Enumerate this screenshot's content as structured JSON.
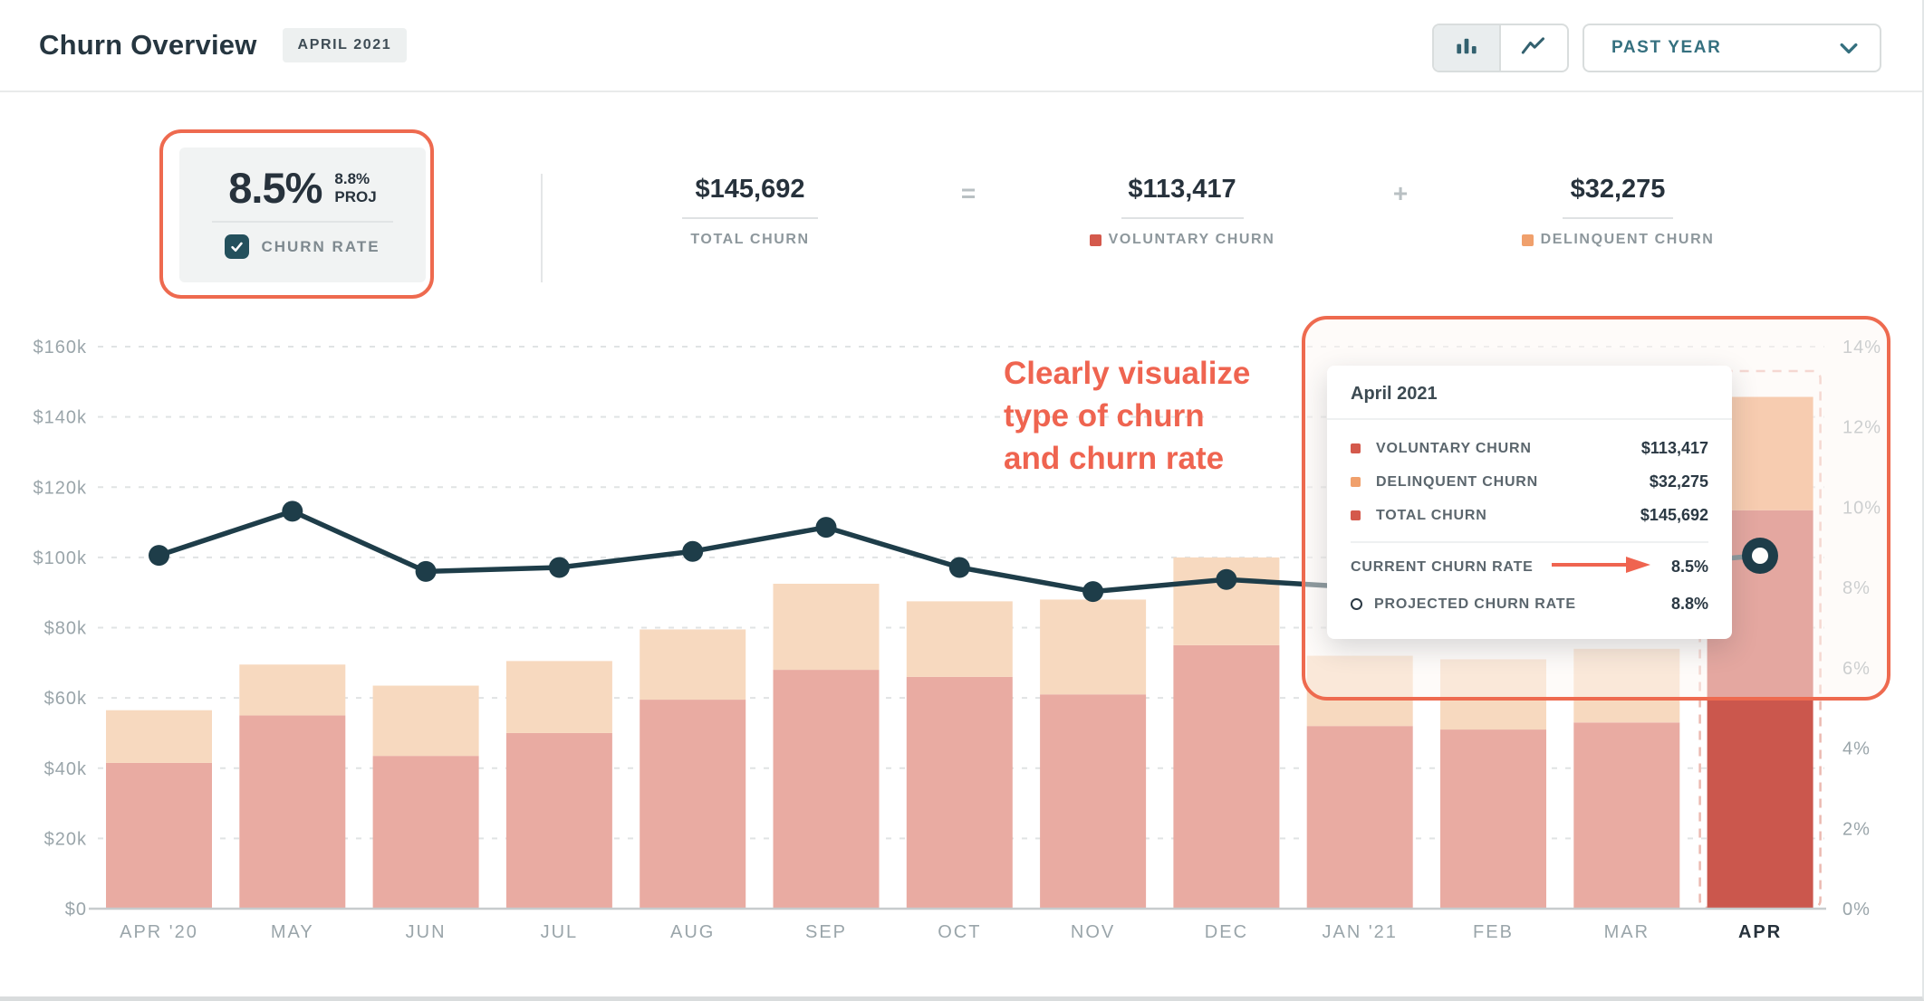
{
  "header": {
    "title": "Churn Overview",
    "badge": "APRIL 2021",
    "view_toggle": {
      "active": "bar",
      "bar_icon": "bar-chart-icon",
      "line_icon": "line-chart-icon"
    },
    "range_select": {
      "value": "PAST YEAR",
      "icon": "chevron-down-icon"
    }
  },
  "stats": {
    "churn_rate": {
      "value": "8.5%",
      "proj_value": "8.8%",
      "proj_label": "PROJ",
      "checkbox_label": "CHURN RATE",
      "checked": true
    },
    "equation": {
      "total": {
        "value": "$145,692",
        "label": "TOTAL CHURN"
      },
      "equals": "=",
      "voluntary": {
        "value": "$113,417",
        "label": "VOLUNTARY CHURN",
        "swatch": "#d4594c"
      },
      "plus": "+",
      "delinquent": {
        "value": "$32,275",
        "label": "DELINQUENT CHURN",
        "swatch": "#f0a06c"
      }
    }
  },
  "annotation": {
    "lines": [
      "Clearly visualize",
      "type of churn",
      "and churn rate"
    ],
    "color": "#ef6450"
  },
  "tooltip": {
    "title": "April 2021",
    "rows": [
      {
        "label": "VOLUNTARY CHURN",
        "value": "$113,417",
        "swatch": "#d4594c"
      },
      {
        "label": "DELINQUENT CHURN",
        "value": "$32,275",
        "swatch": "#f0a06c"
      },
      {
        "label": "TOTAL CHURN",
        "value": "$145,692",
        "swatch": "#d4594c"
      }
    ],
    "current": {
      "label": "CURRENT CHURN RATE",
      "value": "8.5%"
    },
    "projected": {
      "label": "PROJECTED CHURN RATE",
      "value": "8.8%"
    }
  },
  "chart_data": {
    "type": "bar",
    "subtype": "stacked bars with churn-rate line overlay, dual y-axes",
    "title": "Monthly churn ($) and churn rate (%), past year",
    "categories": [
      "APR '20",
      "MAY",
      "JUN",
      "JUL",
      "AUG",
      "SEP",
      "OCT",
      "NOV",
      "DEC",
      "JAN '21",
      "FEB",
      "MAR",
      "APR"
    ],
    "series": [
      {
        "name": "Voluntary churn ($)",
        "values": [
          41500,
          55000,
          43500,
          50000,
          59500,
          68000,
          66000,
          61000,
          75000,
          52000,
          51000,
          53000,
          113417
        ]
      },
      {
        "name": "Delinquent churn ($)",
        "values": [
          15000,
          14500,
          20000,
          20500,
          20000,
          24500,
          21500,
          27000,
          25000,
          20000,
          20000,
          21000,
          32275
        ]
      }
    ],
    "line": {
      "name": "Churn rate (%)",
      "values": [
        8.8,
        9.9,
        8.4,
        8.5,
        8.9,
        9.5,
        8.5,
        7.9,
        8.2,
        8.0,
        8.2,
        8.5,
        8.8
      ],
      "note": "last point drawn as ring marker = projected rate; current month rate is 8.5%"
    },
    "highlighted_category": "APR",
    "projection_outline_on_last_bar": true,
    "y_left": {
      "min": 0,
      "max": 160000,
      "ticks": [
        "$0",
        "$20k",
        "$40k",
        "$60k",
        "$80k",
        "$100k",
        "$120k",
        "$140k",
        "$160k"
      ]
    },
    "y_right": {
      "min": 0,
      "max": 14,
      "ticks": [
        "0%",
        "2%",
        "4%",
        "6%",
        "8%",
        "10%",
        "12%",
        "14%"
      ]
    },
    "grid": "horizontal dashed",
    "legend_position": "none (legend lives in stats row)",
    "colors": {
      "voluntary": "#e9aba2",
      "delinquent": "#f7d9bf",
      "voluntary_current": "#cb574d",
      "delinquent_current": "#f0a06c",
      "line": "#1e3d49",
      "grid": "#e0e3e4",
      "axis_text": "#9aa5aa",
      "highlight": "#ee6a4f"
    }
  }
}
